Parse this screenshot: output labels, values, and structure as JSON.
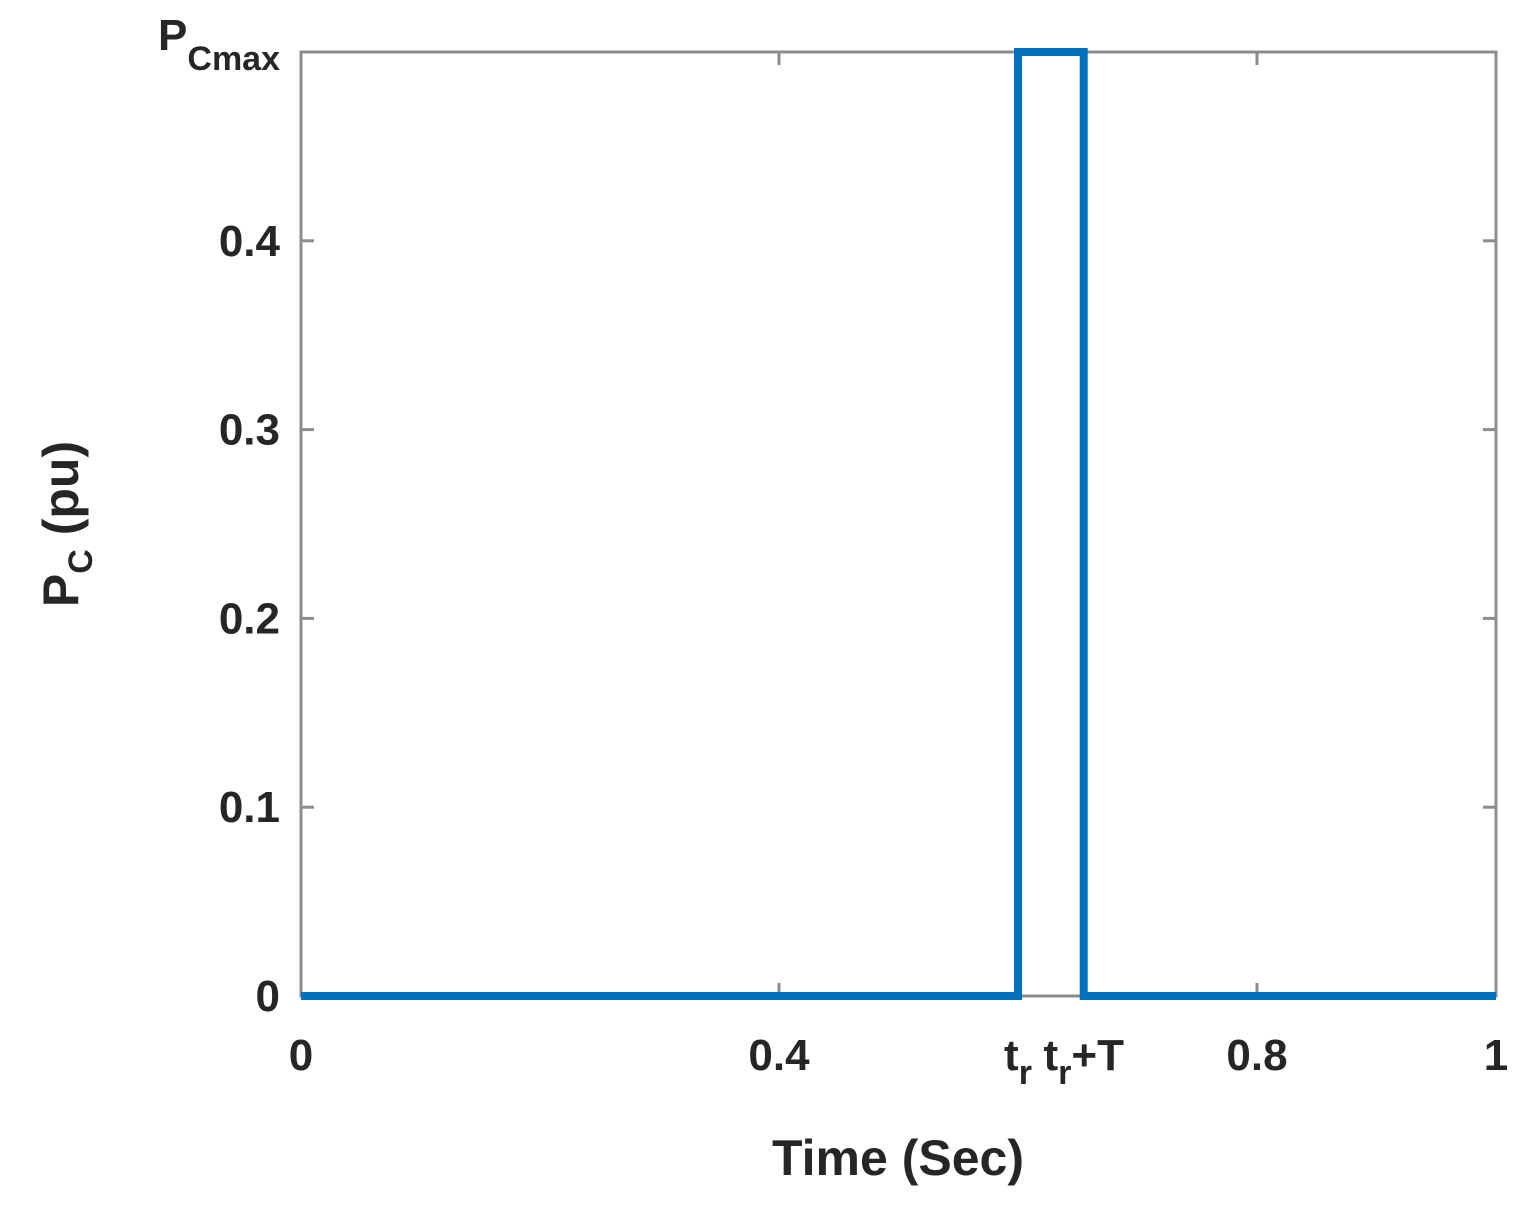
{
  "chart_data": {
    "type": "line",
    "xlabel": {
      "main": "Time (Sec)"
    },
    "ylabel": {
      "main": "P",
      "sub": "C",
      "suffix": " (pu)"
    },
    "xlim": [
      0,
      1
    ],
    "ylim": [
      0,
      0.5
    ],
    "grid": false,
    "x_ticks": [
      {
        "value": 0,
        "label": "0",
        "sub": "",
        "suffix": ""
      },
      {
        "value": 0.4,
        "label": "0.4",
        "sub": "",
        "suffix": ""
      },
      {
        "value": 0.6,
        "label": "t",
        "sub": "r",
        "suffix": ""
      },
      {
        "value": 0.655,
        "label": "t",
        "sub": "r",
        "suffix": "+T"
      },
      {
        "value": 0.8,
        "label": "0.8",
        "sub": "",
        "suffix": ""
      },
      {
        "value": 1,
        "label": "1",
        "sub": "",
        "suffix": ""
      }
    ],
    "y_ticks": [
      {
        "value": 0,
        "label": "0",
        "sub": ""
      },
      {
        "value": 0.1,
        "label": "0.1",
        "sub": ""
      },
      {
        "value": 0.2,
        "label": "0.2",
        "sub": ""
      },
      {
        "value": 0.3,
        "label": "0.3",
        "sub": ""
      },
      {
        "value": 0.4,
        "label": "0.4",
        "sub": ""
      },
      {
        "value": 0.5,
        "label": "P",
        "sub": "Cmax"
      }
    ],
    "series": [
      {
        "color": "#0072BD",
        "x": [
          0,
          0.6,
          0.6,
          0.655,
          0.655,
          1
        ],
        "y": [
          0,
          0,
          0.5,
          0.5,
          0,
          0
        ]
      }
    ]
  }
}
